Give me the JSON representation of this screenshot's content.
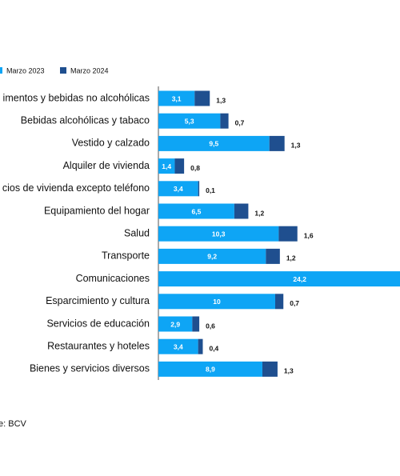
{
  "chart_data": {
    "type": "stacked-bar-horizontal",
    "categories": [
      "imentos y bebidas no alcohólicas",
      "Bebidas alcohólicas y tabaco",
      "Vestido y calzado",
      "Alquiler de vivienda",
      "cios de vivienda excepto teléfono",
      "Equipamiento del hogar",
      "Salud",
      "Transporte",
      "Comunicaciones",
      "Esparcimiento y cultura",
      "Servicios de educación",
      "Restaurantes y hoteles",
      "Bienes y servicios diversos"
    ],
    "series": [
      {
        "name": "Marzo 2023",
        "color": "#0ea5f5",
        "values": [
          3.1,
          5.3,
          9.5,
          1.4,
          3.4,
          6.5,
          10.3,
          9.2,
          24.2,
          10,
          2.9,
          3.4,
          8.9
        ],
        "value_labels": [
          "3,1",
          "5,3",
          "9,5",
          "1,4",
          "3,4",
          "6,5",
          "10,3",
          "9,2",
          "24,2",
          "10",
          "2,9",
          "3,4",
          "8,9"
        ]
      },
      {
        "name": "Marzo 2024",
        "color": "#1f4f8f",
        "values": [
          1.3,
          0.7,
          1.3,
          0.8,
          0.1,
          1.2,
          1.6,
          1.2,
          null,
          0.7,
          0.6,
          0.4,
          1.3
        ],
        "value_labels": [
          "1,3",
          "0,7",
          "1,3",
          "0,8",
          "0,1",
          "1,2",
          "1,6",
          "1,2",
          null,
          "0,7",
          "0,6",
          "0,4",
          "1,3"
        ]
      }
    ],
    "source": "e: BCV"
  }
}
